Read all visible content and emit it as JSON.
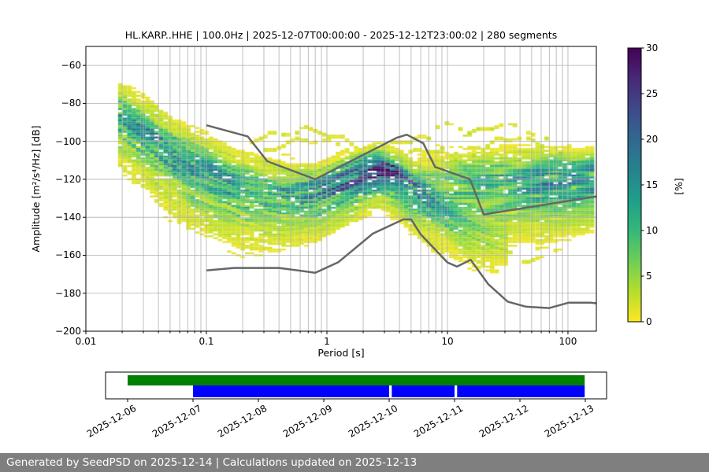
{
  "title": "HL.KARP..HHE | 100.0Hz | 2025-12-07T00:00:00 - 2025-12-12T23:00:02 | 280 segments",
  "footer": {
    "text": "Generated by SeedPSD on 2025-12-14 | Calculations updated on 2025-12-13"
  },
  "chart_data": {
    "type": "heatmap",
    "title": "HL.KARP..HHE | 100.0Hz | 2025-12-07T00:00:00 - 2025-12-12T23:00:02 | 280 segments",
    "xlabel": "Period [s]",
    "ylabel": "Amplitude [m²/s⁴/Hz] [dB]",
    "xscale": "log",
    "xlim": [
      0.01,
      172
    ],
    "ylim": [
      -200,
      -50
    ],
    "xticks": [
      0.01,
      0.1,
      1,
      10,
      100
    ],
    "xtick_labels": [
      "0.01",
      "0.1",
      "1",
      "10",
      "100"
    ],
    "yticks": [
      -60,
      -80,
      -100,
      -120,
      -140,
      -160,
      -180,
      -200
    ],
    "ytick_labels": [
      "−60",
      "−80",
      "−100",
      "−120",
      "−140",
      "−160",
      "−180",
      "−200"
    ],
    "grid": true,
    "grid_color": "#b0b0b0",
    "colorbar": {
      "label": "[%]",
      "vmin": 0,
      "vmax": 30,
      "ticks": [
        0,
        5,
        10,
        15,
        20,
        25,
        30
      ],
      "tick_labels": [
        "0",
        "5",
        "10",
        "15",
        "20",
        "25",
        "30"
      ],
      "colormap": "viridis_r"
    },
    "viridis": [
      "#440154",
      "#482878",
      "#3e4989",
      "#31688e",
      "#26828e",
      "#1f9e89",
      "#35b779",
      "#6ece58",
      "#b5de2b",
      "#fde725"
    ],
    "noise_models": {
      "color": "#666666",
      "nhnm": [
        [
          0.1,
          -91.5
        ],
        [
          0.22,
          -97.4
        ],
        [
          0.32,
          -110.5
        ],
        [
          0.8,
          -120.0
        ],
        [
          3.8,
          -98.1
        ],
        [
          4.6,
          -96.5
        ],
        [
          6.3,
          -101.0
        ],
        [
          7.9,
          -113.5
        ],
        [
          15.4,
          -120.0
        ],
        [
          20.0,
          -138.5
        ],
        [
          172.0,
          -129.0
        ]
      ],
      "nlnm": [
        [
          0.1,
          -168.0
        ],
        [
          0.17,
          -166.7
        ],
        [
          0.4,
          -166.7
        ],
        [
          0.8,
          -169.2
        ],
        [
          1.24,
          -163.7
        ],
        [
          2.4,
          -148.6
        ],
        [
          4.3,
          -141.1
        ],
        [
          5.0,
          -141.1
        ],
        [
          6.0,
          -149.0
        ],
        [
          10.0,
          -163.8
        ],
        [
          12.0,
          -166.0
        ],
        [
          15.6,
          -162.4
        ],
        [
          21.9,
          -175.4
        ],
        [
          31.6,
          -184.4
        ],
        [
          45.0,
          -187.1
        ],
        [
          70.0,
          -187.8
        ],
        [
          101.0,
          -185.0
        ],
        [
          154.0,
          -185.0
        ],
        [
          172.0,
          -185.3
        ]
      ]
    },
    "ppsd": {
      "period_min": 0.0185,
      "octave_fraction": 8,
      "db_bin": 1,
      "ridges": [
        {
          "name": "short-period-and-microseism-band",
          "points": [
            [
              0.018,
              -84,
              9,
              5.5,
              10
            ],
            [
              0.02,
              -86,
              10,
              6,
              11
            ],
            [
              0.032,
              -95,
              11,
              7,
              12
            ],
            [
              0.05,
              -104,
              11,
              7,
              13
            ],
            [
              0.08,
              -112,
              11,
              7,
              13
            ],
            [
              0.125,
              -118,
              11,
              7,
              13
            ],
            [
              0.2,
              -123,
              10,
              7,
              13
            ],
            [
              0.32,
              -126,
              10,
              7,
              12
            ],
            [
              0.5,
              -128,
              10,
              7,
              10.5
            ],
            [
              0.8,
              -126.5,
              12,
              6,
              10
            ],
            [
              1.2,
              -121.5,
              15,
              5.5,
              10
            ],
            [
              1.8,
              -117,
              19,
              5,
              9
            ],
            [
              2.8,
              -113.5,
              26,
              4.5,
              8
            ],
            [
              3.8,
              -116.5,
              20,
              4.5,
              9
            ],
            [
              5.2,
              -123,
              14,
              5,
              10
            ],
            [
              7.5,
              -131,
              10,
              5,
              10
            ],
            [
              11,
              -139,
              7,
              5,
              9
            ],
            [
              16,
              -145.5,
              4.5,
              4.5,
              8
            ],
            [
              23,
              -150,
              2.5,
              4,
              7
            ],
            [
              33,
              -153,
              1.2,
              3.5,
              5
            ]
          ]
        },
        {
          "name": "long-period-band",
          "points": [
            [
              5.5,
              -120,
              2,
              5,
              5
            ],
            [
              8,
              -120.5,
              5,
              6,
              7
            ],
            [
              12,
              -121,
              8,
              6,
              9
            ],
            [
              20,
              -121,
              10,
              6.5,
              12
            ],
            [
              35,
              -120.5,
              10,
              7,
              13
            ],
            [
              60,
              -120,
              11,
              7,
              13
            ],
            [
              100,
              -119.5,
              12,
              6.5,
              12
            ],
            [
              172,
              -118.5,
              13,
              6,
              11
            ]
          ]
        }
      ],
      "outlier_arcs": [
        {
          "pct": 1.6,
          "points": [
            [
              0.22,
              -100
            ],
            [
              0.4,
              -96
            ],
            [
              0.7,
              -94
            ],
            [
              1.1,
              -96.5
            ],
            [
              1.7,
              -102
            ]
          ]
        },
        {
          "pct": 1.4,
          "points": [
            [
              0.3,
              -105
            ],
            [
              0.55,
              -100
            ],
            [
              0.9,
              -99
            ],
            [
              1.5,
              -104
            ],
            [
              2.1,
              -110
            ]
          ]
        },
        {
          "pct": 1.7,
          "points": [
            [
              2.6,
              -105
            ],
            [
              4,
              -100
            ],
            [
              6,
              -98
            ],
            [
              9,
              -102
            ],
            [
              13,
              -109
            ]
          ]
        },
        {
          "pct": 1.4,
          "points": [
            [
              3.2,
              -112
            ],
            [
              5,
              -106
            ],
            [
              8,
              -104
            ],
            [
              12,
              -110
            ],
            [
              16,
              -116
            ]
          ]
        },
        {
          "pct": 1.8,
          "points": [
            [
              13,
              -99
            ],
            [
              20,
              -93
            ],
            [
              30,
              -91
            ],
            [
              45,
              -94
            ],
            [
              68,
              -100
            ],
            [
              95,
              -107
            ]
          ]
        },
        {
          "pct": 1.5,
          "points": [
            [
              16,
              -107
            ],
            [
              25,
              -100
            ],
            [
              40,
              -98
            ],
            [
              62,
              -103
            ],
            [
              88,
              -110
            ]
          ]
        },
        {
          "pct": 1.3,
          "points": [
            [
              7,
              -93
            ],
            [
              10,
              -91
            ],
            [
              14,
              -94
            ],
            [
              18,
              -99
            ]
          ]
        },
        {
          "pct": 1.3,
          "points": [
            [
              20,
              -151
            ],
            [
              30,
              -158
            ],
            [
              45,
              -163
            ],
            [
              65,
              -161
            ],
            [
              90,
              -155
            ]
          ]
        }
      ]
    }
  },
  "timeline": {
    "day_labels": [
      "2025-12-06",
      "2025-12-07",
      "2025-12-08",
      "2025-12-09",
      "2025-12-10",
      "2025-12-11",
      "2025-12-12",
      "2025-12-13"
    ],
    "bars": [
      {
        "name": "data-availability",
        "color": "#008000",
        "row": 0,
        "segments": [
          [
            0,
            6.99
          ]
        ]
      },
      {
        "name": "psd-coverage",
        "color": "#0000ff",
        "row": 1,
        "segments": [
          [
            1,
            4
          ],
          [
            4.04,
            5
          ],
          [
            5.04,
            6.99
          ]
        ]
      }
    ]
  }
}
